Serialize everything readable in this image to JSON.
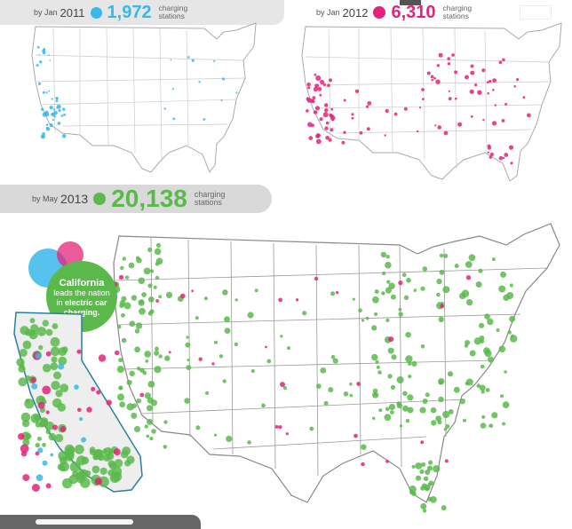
{
  "panels": {
    "jan2011": {
      "prefix": "by",
      "month": "Jan",
      "year": "2011",
      "count": "1,972",
      "caption_line1": "charging",
      "caption_line2": "stations",
      "color": "#3ab7ea"
    },
    "jan2012": {
      "prefix": "by",
      "month": "Jan",
      "year": "2012",
      "count": "6,310",
      "caption_line1": "charging",
      "caption_line2": "stations",
      "color": "#e4237a"
    },
    "may2013": {
      "prefix": "by",
      "month": "May",
      "year": "2013",
      "count": "20,138",
      "caption_line1": "charging",
      "caption_line2": "stations",
      "color": "#5bb94c"
    }
  },
  "callout": {
    "title": "California",
    "line1": "leads the nation",
    "line2_prefix": "in ",
    "line2_bold": "electric car",
    "line3": "charging."
  },
  "colors": {
    "blue": "#3ab7ea",
    "pink": "#e4237a",
    "green": "#5bb94c",
    "border": "#999999",
    "ca_fill": "#eeeeee"
  }
}
